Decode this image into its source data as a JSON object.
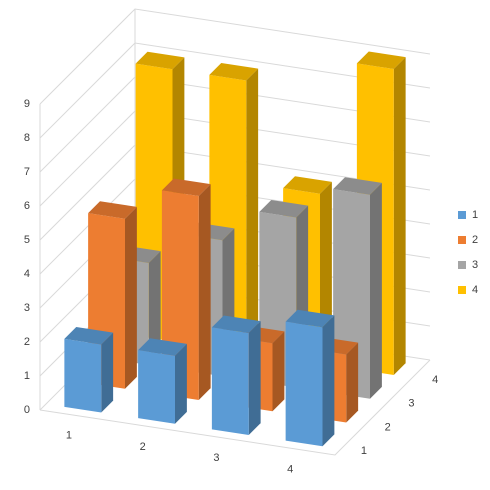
{
  "chart_data": {
    "type": "bar3d",
    "categories": [
      "1",
      "2",
      "3",
      "4"
    ],
    "series": [
      {
        "name": "1",
        "color": "#5b9bd5",
        "values": [
          2,
          2,
          3,
          3.5
        ]
      },
      {
        "name": "2",
        "color": "#ed7d31",
        "values": [
          5,
          6,
          2,
          2
        ]
      },
      {
        "name": "3",
        "color": "#a5a5a5",
        "values": [
          3,
          4,
          5,
          6
        ]
      },
      {
        "name": "4",
        "color": "#ffc000",
        "values": [
          8,
          8,
          5,
          9
        ]
      }
    ],
    "ylim": [
      0,
      9
    ],
    "yticks": [
      0,
      1,
      2,
      3,
      4,
      5,
      6,
      7,
      8,
      9
    ],
    "grid": true,
    "legend": "right"
  }
}
